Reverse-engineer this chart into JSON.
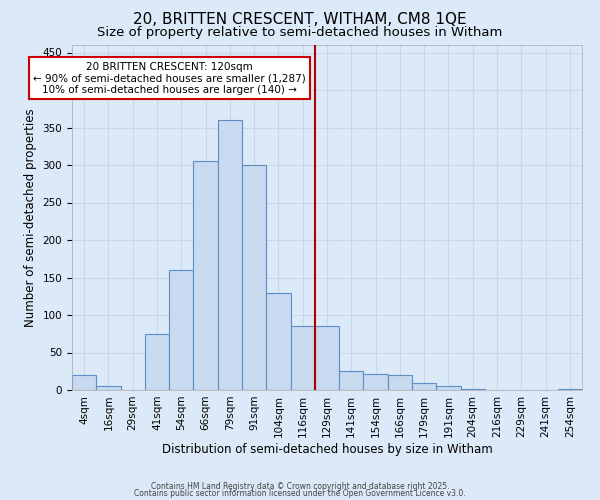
{
  "title": "20, BRITTEN CRESCENT, WITHAM, CM8 1QE",
  "subtitle": "Size of property relative to semi-detached houses in Witham",
  "xlabel": "Distribution of semi-detached houses by size in Witham",
  "ylabel": "Number of semi-detached properties",
  "bar_labels": [
    "4sqm",
    "16sqm",
    "29sqm",
    "41sqm",
    "54sqm",
    "66sqm",
    "79sqm",
    "91sqm",
    "104sqm",
    "116sqm",
    "129sqm",
    "141sqm",
    "154sqm",
    "166sqm",
    "179sqm",
    "191sqm",
    "204sqm",
    "216sqm",
    "229sqm",
    "241sqm",
    "254sqm"
  ],
  "bar_values": [
    20,
    5,
    0,
    75,
    160,
    305,
    360,
    300,
    130,
    85,
    85,
    25,
    22,
    20,
    10,
    5,
    2,
    0,
    0,
    0,
    2
  ],
  "bar_color": "#c9d9f0",
  "bar_edge_color": "#5b8ec4",
  "background_color": "#dce9f8",
  "grid_color": "#c8d8ea",
  "vline_index": 9,
  "vline_color": "#aa0000",
  "annotation_title": "20 BRITTEN CRESCENT: 120sqm",
  "annotation_line1": "← 90% of semi-detached houses are smaller (1,287)",
  "annotation_line2": "10% of semi-detached houses are larger (140) →",
  "annotation_box_color": "#ffffff",
  "annotation_edge_color": "#cc0000",
  "ylim": [
    0,
    460
  ],
  "yticks": [
    0,
    50,
    100,
    150,
    200,
    250,
    300,
    350,
    400,
    450
  ],
  "footer1": "Contains HM Land Registry data © Crown copyright and database right 2025.",
  "footer2": "Contains public sector information licensed under the Open Government Licence v3.0.",
  "title_fontsize": 11,
  "subtitle_fontsize": 9.5,
  "axis_label_fontsize": 8.5,
  "tick_fontsize": 7.5,
  "footer_fontsize": 5.5
}
